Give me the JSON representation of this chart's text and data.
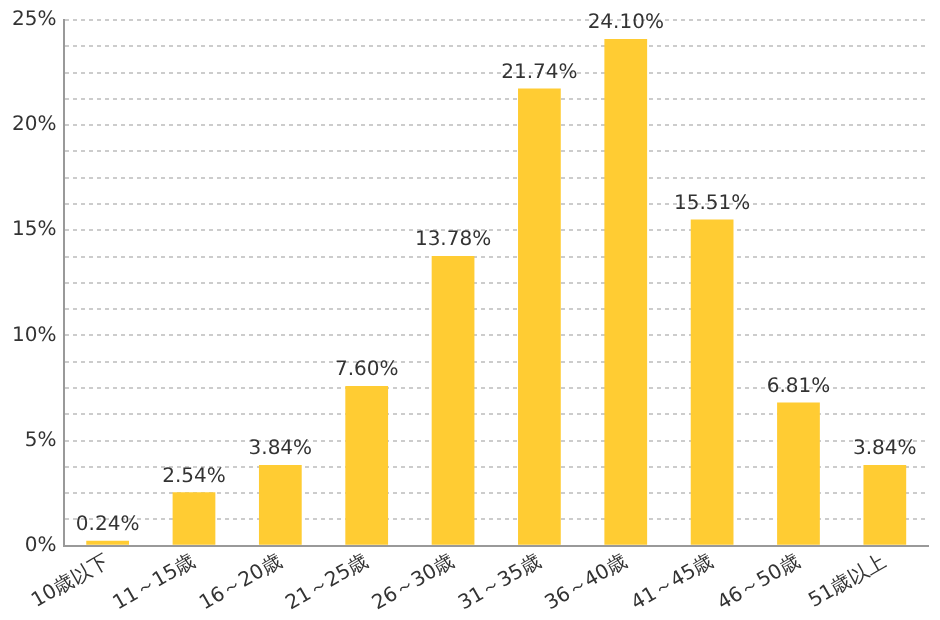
{
  "chart_data": {
    "type": "bar",
    "categories": [
      "10歳以下",
      "11～15歳",
      "16～20歳",
      "21～25歳",
      "26～30歳",
      "31～35歳",
      "36～40歳",
      "41～45歳",
      "46～50歳",
      "51歳以上"
    ],
    "values": [
      0.24,
      2.54,
      3.84,
      7.6,
      13.78,
      21.74,
      24.1,
      15.51,
      6.81,
      3.84
    ],
    "value_labels": [
      "0.24%",
      "2.54%",
      "3.84%",
      "7.60%",
      "13.78%",
      "21.74%",
      "24.10%",
      "15.51%",
      "6.81%",
      "3.84%"
    ],
    "color": "#ffcc33",
    "ylim": [
      0,
      25
    ],
    "yticks": [
      {
        "value": 0,
        "label": "0%"
      },
      {
        "value": 1.25,
        "label": null
      },
      {
        "value": 2.5,
        "label": null
      },
      {
        "value": 3.75,
        "label": null
      },
      {
        "value": 5,
        "label": "5%"
      },
      {
        "value": 6.25,
        "label": null
      },
      {
        "value": 7.5,
        "label": null
      },
      {
        "value": 8.75,
        "label": null
      },
      {
        "value": 10,
        "label": "10%"
      },
      {
        "value": 11.25,
        "label": null
      },
      {
        "value": 12.5,
        "label": null
      },
      {
        "value": 13.75,
        "label": null
      },
      {
        "value": 15,
        "label": "15%"
      },
      {
        "value": 16.25,
        "label": null
      },
      {
        "value": 17.5,
        "label": null
      },
      {
        "value": 18.75,
        "label": null
      },
      {
        "value": 20,
        "label": "20%"
      },
      {
        "value": 21.25,
        "label": null
      },
      {
        "value": 22.5,
        "label": null
      },
      {
        "value": 23.75,
        "label": null
      },
      {
        "value": 25,
        "label": "25%"
      }
    ],
    "grid": "y"
  }
}
